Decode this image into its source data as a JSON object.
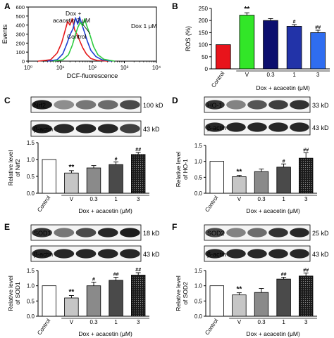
{
  "colors": {
    "flow_red": "#e41a1c",
    "flow_green": "#2ecc40",
    "flow_blue": "#1f3fd1",
    "ros_control": "#e8141b",
    "ros_v": "#32e628",
    "ros_03": "#0c0f6e",
    "ros_1": "#2233a8",
    "ros_3": "#2f6df0"
  },
  "panels": [
    {
      "letter": "A",
      "chart_data": {
        "type": "line",
        "title": "",
        "xlabel": "DCF-fluorescence",
        "ylabel": "Events",
        "x_scale": "log",
        "xlim": [
          1,
          10000
        ],
        "ylim": [
          0,
          600
        ],
        "x_ticks": [
          {
            "value": 1,
            "label": "10⁰"
          },
          {
            "value": 10,
            "label": "10¹"
          },
          {
            "value": 100,
            "label": "10²"
          },
          {
            "value": 1000,
            "label": "10³"
          },
          {
            "value": 10000,
            "label": "10⁴"
          }
        ],
        "y_ticks": [
          0,
          100,
          200,
          300,
          400,
          500,
          600
        ],
        "series": [
          {
            "name": "Control",
            "color": "#e41a1c",
            "x": [
              2,
              5,
              8,
              11,
              14,
              17,
              20,
              24,
              28,
              33,
              40,
              50,
              65,
              90,
              140,
              300
            ],
            "y": [
              0,
              15,
              90,
              200,
              330,
              440,
              400,
              470,
              350,
              300,
              230,
              150,
              80,
              30,
              8,
              0
            ]
          },
          {
            "name": "Dox + acacetin 3 μM",
            "color": "#1f3fd1",
            "x": [
              4,
              8,
              12,
              16,
              20,
              25,
              30,
              35,
              40,
              48,
              56,
              70,
              90,
              130,
              200,
              400
            ],
            "y": [
              0,
              15,
              80,
              190,
              290,
              360,
              480,
              410,
              490,
              400,
              330,
              220,
              120,
              50,
              15,
              0
            ]
          },
          {
            "name": "Dox 1 μM",
            "color": "#2ecc40",
            "x": [
              6,
              12,
              18,
              24,
              30,
              36,
              42,
              50,
              58,
              66,
              76,
              90,
              110,
              150,
              230,
              500
            ],
            "y": [
              0,
              15,
              70,
              180,
              300,
              380,
              430,
              390,
              470,
              400,
              340,
              260,
              160,
              70,
              20,
              0
            ]
          }
        ],
        "annotations": [
          "Control",
          "Dox +",
          "acacetin 3 μM",
          "Dox 1 μM"
        ]
      }
    },
    {
      "letter": "B",
      "chart_data": {
        "type": "bar",
        "ylabel": "ROS  (%)",
        "xlabel": "Dox + acacetin (μM)",
        "ylim": [
          0,
          250
        ],
        "y_ticks": [
          0,
          50,
          100,
          150,
          200,
          250
        ],
        "categories": [
          "Control",
          "V",
          "0.3",
          "1",
          "3"
        ],
        "values": [
          100,
          222,
          200,
          176,
          150
        ],
        "errors": [
          0,
          10,
          8,
          7,
          10
        ],
        "bar_colors": [
          "#e8141b",
          "#32e628",
          "#0c0f6e",
          "#2233a8",
          "#2f6df0"
        ],
        "significance": [
          "",
          "**",
          "",
          "#",
          "##"
        ]
      }
    },
    {
      "letter": "C",
      "blot": {
        "protein": "Nrf2",
        "protein_kd": "100 kD",
        "loading": "β-actin",
        "loading_kd": "43 kD"
      },
      "chart_data": {
        "type": "bar",
        "ylabel": "Relative level of Nrf2",
        "xlabel": "Dox + acacetin (μM)",
        "ylim": [
          0,
          1.5
        ],
        "y_ticks": [
          "0.0",
          "0.5",
          "1.0",
          "1.5"
        ],
        "categories": [
          "Control",
          "V",
          "0.3",
          "1",
          "3"
        ],
        "values": [
          1.0,
          0.6,
          0.75,
          0.85,
          1.15
        ],
        "errors": [
          0,
          0.07,
          0.07,
          0.08,
          0.06
        ],
        "significance": [
          "",
          "**",
          "",
          "#",
          "##"
        ]
      }
    },
    {
      "letter": "D",
      "blot": {
        "protein": "HO-1",
        "protein_kd": "33 kD",
        "loading": "β-actin",
        "loading_kd": "43 kD"
      },
      "chart_data": {
        "type": "bar",
        "ylabel": "Relative level of HO-1",
        "xlabel": "Dox + acacetin (μM)",
        "ylim": [
          0,
          1.5
        ],
        "y_ticks": [
          "0.0",
          "0.5",
          "1.0",
          "1.5"
        ],
        "categories": [
          "Control",
          "V",
          "0.3",
          "1",
          "3"
        ],
        "values": [
          1.0,
          0.52,
          0.68,
          0.82,
          1.1
        ],
        "errors": [
          0,
          0.04,
          0.08,
          0.1,
          0.17
        ],
        "significance": [
          "",
          "**",
          "",
          "#",
          "##"
        ]
      }
    },
    {
      "letter": "E",
      "blot": {
        "protein": "SOD1",
        "protein_kd": "18 kD",
        "loading": "β-actin",
        "loading_kd": "43 kD"
      },
      "chart_data": {
        "type": "bar",
        "ylabel": "Relative level of SOD1",
        "xlabel": "Dox + acacetin (μM)",
        "ylim": [
          0,
          1.5
        ],
        "y_ticks": [
          "0.0",
          "0.5",
          "1.0",
          "1.5"
        ],
        "categories": [
          "Control",
          "V",
          "0.3",
          "1",
          "3"
        ],
        "values": [
          1.0,
          0.6,
          1.0,
          1.18,
          1.35
        ],
        "errors": [
          0,
          0.08,
          0.12,
          0.1,
          0.08
        ],
        "significance": [
          "",
          "**",
          "#",
          "##",
          "##"
        ]
      }
    },
    {
      "letter": "F",
      "blot": {
        "protein": "SOD2",
        "protein_kd": "25 kD",
        "loading": "β-actin",
        "loading_kd": "43 kD"
      },
      "chart_data": {
        "type": "bar",
        "ylabel": "Relative level of SOD2",
        "xlabel": "Dox + acacetin (μM)",
        "ylim": [
          0,
          1.5
        ],
        "y_ticks": [
          "0.0",
          "0.5",
          "1.0",
          "1.5"
        ],
        "categories": [
          "Control",
          "V",
          "0.3",
          "1",
          "3"
        ],
        "values": [
          1.0,
          0.7,
          0.78,
          1.22,
          1.32
        ],
        "errors": [
          0,
          0.07,
          0.13,
          0.06,
          0.1
        ],
        "significance": [
          "",
          "**",
          "",
          "##",
          "##"
        ]
      }
    }
  ]
}
